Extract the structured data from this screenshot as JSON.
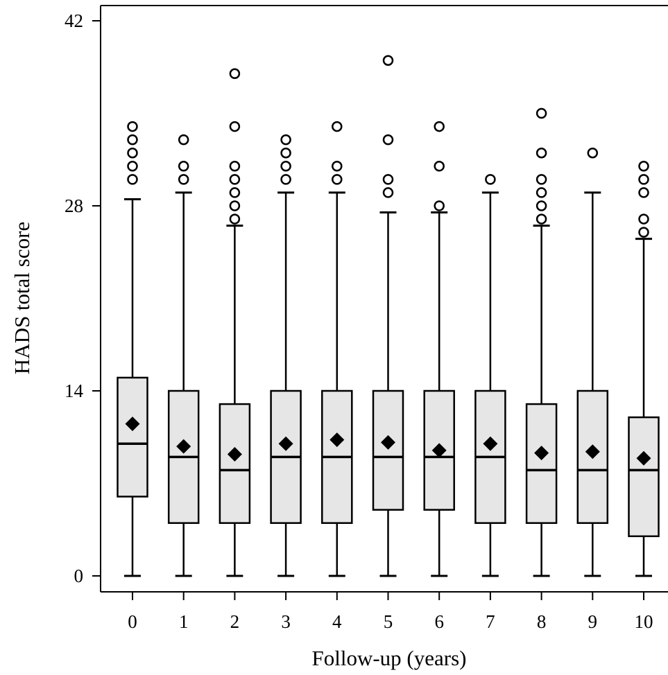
{
  "chart_data": {
    "type": "boxplot",
    "xlabel": "Follow-up (years)",
    "ylabel": "HADS total score",
    "ylim": [
      -1.2,
      43
    ],
    "yticks": [
      0,
      14,
      28,
      42
    ],
    "grid": false,
    "legend": "none",
    "colors": {
      "box_fill": "#e6e6e6",
      "stroke": "#000000",
      "mean_marker": "#000000"
    },
    "categories": [
      "0",
      "1",
      "2",
      "3",
      "4",
      "5",
      "6",
      "7",
      "8",
      "9",
      "10"
    ],
    "boxes": [
      {
        "category": "0",
        "whisker_low": 0,
        "q1": 6,
        "median": 10,
        "q3": 15,
        "whisker_high": 28.5,
        "mean": 11.5,
        "outliers": [
          30,
          31,
          32,
          33,
          34
        ]
      },
      {
        "category": "1",
        "whisker_low": 0,
        "q1": 4,
        "median": 9,
        "q3": 14,
        "whisker_high": 29,
        "mean": 9.8,
        "outliers": [
          30,
          31,
          33
        ]
      },
      {
        "category": "2",
        "whisker_low": 0,
        "q1": 4,
        "median": 8,
        "q3": 13,
        "whisker_high": 26.5,
        "mean": 9.2,
        "outliers": [
          27,
          28,
          29,
          30,
          31,
          34,
          38
        ]
      },
      {
        "category": "3",
        "whisker_low": 0,
        "q1": 4,
        "median": 9,
        "q3": 14,
        "whisker_high": 29,
        "mean": 10.0,
        "outliers": [
          30,
          31,
          32,
          33
        ]
      },
      {
        "category": "4",
        "whisker_low": 0,
        "q1": 4,
        "median": 9,
        "q3": 14,
        "whisker_high": 29,
        "mean": 10.3,
        "outliers": [
          30,
          31,
          34
        ]
      },
      {
        "category": "5",
        "whisker_low": 0,
        "q1": 5,
        "median": 9,
        "q3": 14,
        "whisker_high": 27.5,
        "mean": 10.1,
        "outliers": [
          29,
          30,
          33,
          39
        ]
      },
      {
        "category": "6",
        "whisker_low": 0,
        "q1": 5,
        "median": 9,
        "q3": 14,
        "whisker_high": 27.5,
        "mean": 9.5,
        "outliers": [
          28,
          31,
          34
        ]
      },
      {
        "category": "7",
        "whisker_low": 0,
        "q1": 4,
        "median": 9,
        "q3": 14,
        "whisker_high": 29,
        "mean": 10.0,
        "outliers": [
          30
        ]
      },
      {
        "category": "8",
        "whisker_low": 0,
        "q1": 4,
        "median": 8,
        "q3": 13,
        "whisker_high": 26.5,
        "mean": 9.3,
        "outliers": [
          27,
          28,
          29,
          30,
          32,
          35
        ]
      },
      {
        "category": "9",
        "whisker_low": 0,
        "q1": 4,
        "median": 8,
        "q3": 14,
        "whisker_high": 29,
        "mean": 9.4,
        "outliers": [
          32
        ]
      },
      {
        "category": "10",
        "whisker_low": 0,
        "q1": 3,
        "median": 8,
        "q3": 12,
        "whisker_high": 25.5,
        "mean": 8.9,
        "outliers": [
          26,
          27,
          29,
          30,
          31
        ]
      }
    ]
  }
}
